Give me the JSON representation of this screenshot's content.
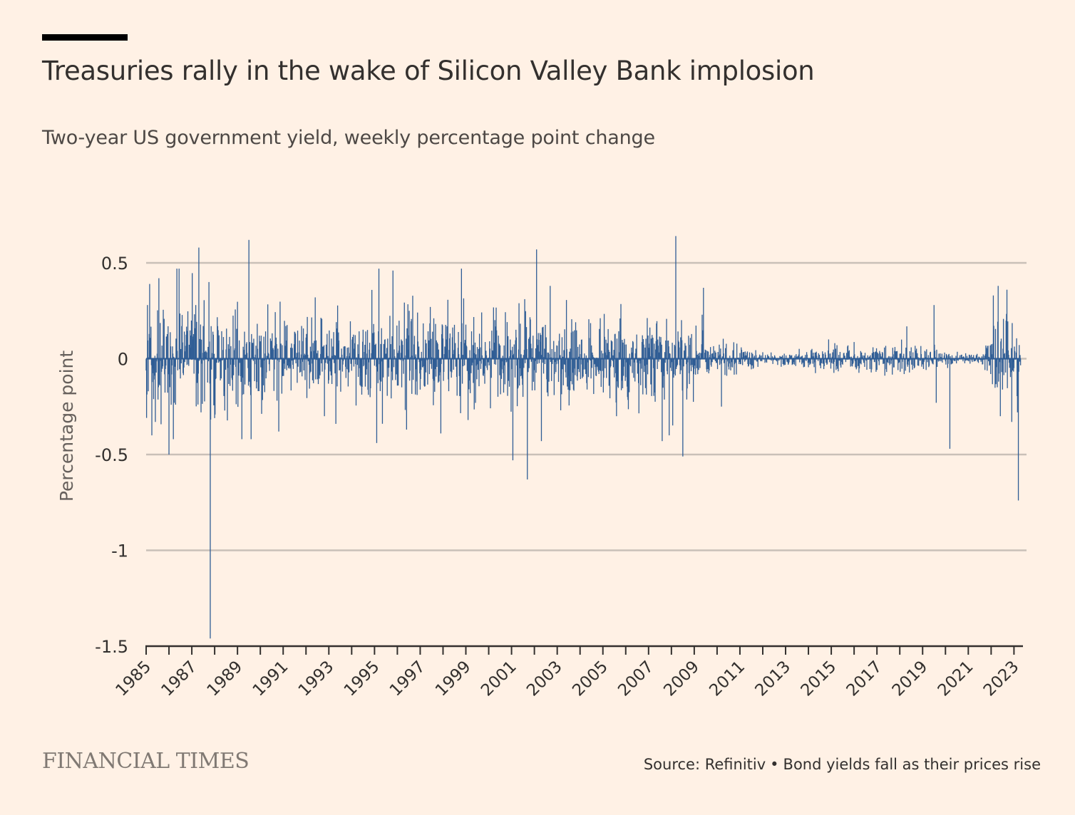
{
  "header": {
    "title": "Treasuries rally in the wake of Silicon Valley Bank implosion",
    "subtitle": "Two-year US government yield, weekly percentage point change"
  },
  "footer": {
    "brand": "FINANCIAL TIMES",
    "source": "Source: Refinitiv",
    "separator": "•",
    "note": "Bond yields fall as their prices rise"
  },
  "colors": {
    "background": "#fff1e5",
    "series": "#2f5d95",
    "gridline": "#c9c0b8",
    "axis": "#33302e",
    "text": "#33302e"
  },
  "chart_data": {
    "type": "bar",
    "title": "Treasuries rally in the wake of Silicon Valley Bank implosion",
    "subtitle": "Two-year US government yield, weekly percentage point change",
    "xlabel": "",
    "ylabel": "Percentage point",
    "xlim": [
      1985,
      2023.3
    ],
    "ylim": [
      -1.5,
      0.5
    ],
    "yticks": [
      0.5,
      0,
      -0.5,
      -1,
      -1.5
    ],
    "ytick_labels": [
      "0.5",
      "0",
      "-0.5",
      "-1",
      "-1.5"
    ],
    "xticks": [
      1985,
      1987,
      1989,
      1991,
      1993,
      1995,
      1997,
      1999,
      2001,
      2003,
      2005,
      2007,
      2009,
      2011,
      2013,
      2015,
      2017,
      2019,
      2021,
      2023
    ],
    "xtick_labels": [
      "1985",
      "1987",
      "1989",
      "1991",
      "1993",
      "1995",
      "1997",
      "1999",
      "2001",
      "2003",
      "2005",
      "2007",
      "2009",
      "2011",
      "2013",
      "2015",
      "2017",
      "2019",
      "2021",
      "2023"
    ],
    "grid": true,
    "legend": "none",
    "frequency": "weekly",
    "volatility_envelope": [
      {
        "x": 1985,
        "amp": 0.2
      },
      {
        "x": 1989,
        "amp": 0.17
      },
      {
        "x": 1990.5,
        "amp": 0.12
      },
      {
        "x": 1994,
        "amp": 0.13
      },
      {
        "x": 1995,
        "amp": 0.17
      },
      {
        "x": 2001,
        "amp": 0.15
      },
      {
        "x": 2004,
        "amp": 0.11
      },
      {
        "x": 2007,
        "amp": 0.15
      },
      {
        "x": 2009,
        "amp": 0.09
      },
      {
        "x": 2011,
        "amp": 0.05
      },
      {
        "x": 2012,
        "amp": 0.022
      },
      {
        "x": 2013.5,
        "amp": 0.03
      },
      {
        "x": 2015,
        "amp": 0.05
      },
      {
        "x": 2019,
        "amp": 0.05
      },
      {
        "x": 2020.5,
        "amp": 0.018
      },
      {
        "x": 2021.5,
        "amp": 0.018
      },
      {
        "x": 2022.5,
        "amp": 0.14
      },
      {
        "x": 2023.3,
        "amp": 0.13
      }
    ],
    "notable_points": [
      {
        "x": 1985.05,
        "y": 0.28
      },
      {
        "x": 1985.1,
        "y": -0.17
      },
      {
        "x": 1985.15,
        "y": 0.39
      },
      {
        "x": 1985.25,
        "y": -0.4
      },
      {
        "x": 1985.4,
        "y": -0.33
      },
      {
        "x": 1985.55,
        "y": 0.42
      },
      {
        "x": 1986.0,
        "y": -0.5
      },
      {
        "x": 1986.2,
        "y": -0.42
      },
      {
        "x": 1986.35,
        "y": 0.47
      },
      {
        "x": 1986.45,
        "y": 0.47
      },
      {
        "x": 1987.3,
        "y": 0.58
      },
      {
        "x": 1987.4,
        "y": -0.28
      },
      {
        "x": 1987.75,
        "y": 0.4
      },
      {
        "x": 1987.8,
        "y": -1.46
      },
      {
        "x": 1988.0,
        "y": -0.31
      },
      {
        "x": 1989.2,
        "y": -0.42
      },
      {
        "x": 1989.5,
        "y": 0.62
      },
      {
        "x": 1989.6,
        "y": -0.42
      },
      {
        "x": 1990.8,
        "y": -0.38
      },
      {
        "x": 1992.4,
        "y": 0.32
      },
      {
        "x": 1992.8,
        "y": -0.3
      },
      {
        "x": 1993.3,
        "y": -0.34
      },
      {
        "x": 1995.1,
        "y": -0.44
      },
      {
        "x": 1995.2,
        "y": 0.47
      },
      {
        "x": 1995.8,
        "y": 0.46
      },
      {
        "x": 1996.4,
        "y": -0.37
      },
      {
        "x": 1997.9,
        "y": -0.39
      },
      {
        "x": 1998.8,
        "y": 0.47
      },
      {
        "x": 1999.1,
        "y": -0.32
      },
      {
        "x": 2001.05,
        "y": -0.53
      },
      {
        "x": 2001.7,
        "y": -0.63
      },
      {
        "x": 2002.1,
        "y": 0.57
      },
      {
        "x": 2002.3,
        "y": -0.43
      },
      {
        "x": 2002.7,
        "y": 0.38
      },
      {
        "x": 2005.6,
        "y": -0.3
      },
      {
        "x": 2007.6,
        "y": -0.43
      },
      {
        "x": 2007.9,
        "y": -0.4
      },
      {
        "x": 2008.2,
        "y": 0.64
      },
      {
        "x": 2008.5,
        "y": -0.51
      },
      {
        "x": 2009.4,
        "y": 0.37
      },
      {
        "x": 2010.2,
        "y": -0.25
      },
      {
        "x": 2019.5,
        "y": 0.28
      },
      {
        "x": 2019.6,
        "y": -0.23
      },
      {
        "x": 2020.2,
        "y": -0.47
      },
      {
        "x": 2022.1,
        "y": 0.33
      },
      {
        "x": 2022.3,
        "y": 0.38
      },
      {
        "x": 2022.4,
        "y": -0.3
      },
      {
        "x": 2022.7,
        "y": 0.36
      },
      {
        "x": 2022.9,
        "y": -0.33
      },
      {
        "x": 2023.15,
        "y": -0.28
      },
      {
        "x": 2023.2,
        "y": -0.74
      }
    ]
  }
}
